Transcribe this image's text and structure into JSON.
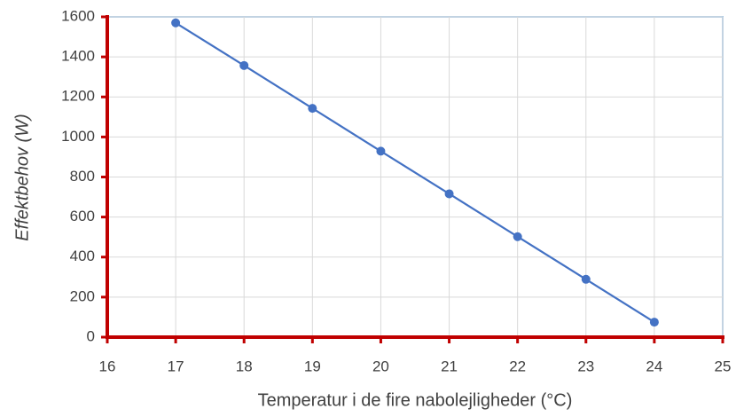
{
  "chart_data": {
    "type": "line",
    "x_label": "Temperatur i de fire nabolejligheder  (°C)",
    "y_label": "Effektbehov  (W)",
    "series": [
      {
        "name": "Effektbehov",
        "color": "#4472c4",
        "x": [
          17,
          18,
          19,
          20,
          21,
          22,
          23,
          24
        ],
        "values": [
          1570,
          1357,
          1143,
          929,
          716,
          502,
          289,
          75
        ]
      }
    ],
    "xlim": [
      16,
      25
    ],
    "xticks": [
      16,
      17,
      18,
      19,
      20,
      21,
      22,
      23,
      24,
      25
    ],
    "ylim": [
      0,
      1600
    ],
    "yticks": [
      0,
      200,
      400,
      600,
      800,
      1000,
      1200,
      1400,
      1600
    ],
    "grid": true,
    "axis_color": "#c00000",
    "frame_color": "#5b9bd5",
    "markers": true
  }
}
